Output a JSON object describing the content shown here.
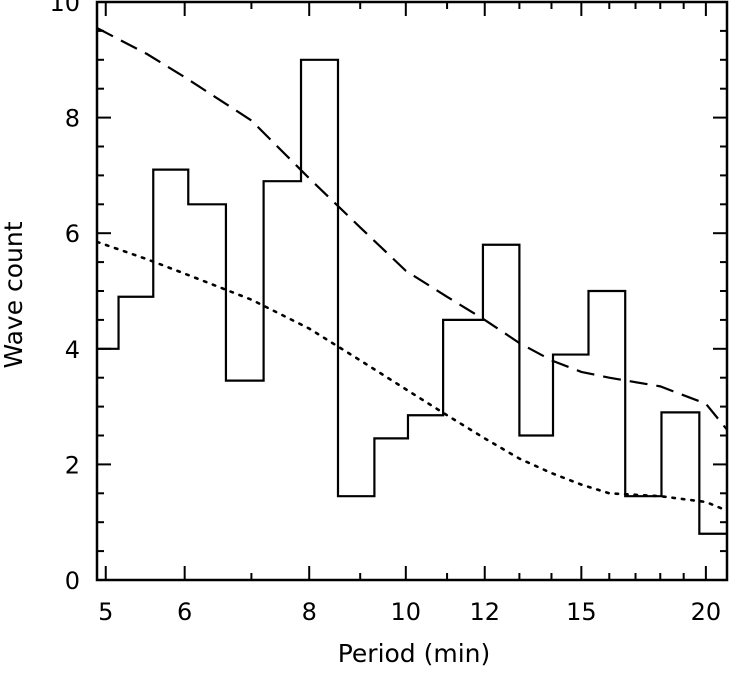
{
  "chart_data": {
    "type": "line",
    "title": "",
    "xlabel": "Period (min)",
    "ylabel": "Wave count",
    "x_scale": "log",
    "xlim": [
      4.9,
      21.0
    ],
    "ylim": [
      0,
      10
    ],
    "x_ticks": [
      5,
      6,
      8,
      10,
      12,
      15,
      20
    ],
    "x_tick_labels": [
      "5",
      "6",
      "8",
      "10",
      "12",
      "15",
      "20"
    ],
    "y_ticks": [
      0,
      2,
      4,
      6,
      8,
      10
    ],
    "y_tick_labels": [
      "0",
      "2",
      "4",
      "6",
      "8",
      "10"
    ],
    "grid": false,
    "legend": "none",
    "series": [
      {
        "style": "histogram-step",
        "color": "#000000",
        "bin_edges": [
          4.9,
          5.15,
          5.58,
          6.05,
          6.6,
          7.2,
          7.85,
          8.55,
          9.3,
          10.05,
          10.9,
          11.95,
          13.0,
          14.05,
          15.25,
          16.6,
          18.05,
          19.7,
          21.0
        ],
        "values": [
          4.0,
          4.9,
          7.1,
          6.5,
          3.45,
          6.9,
          9.0,
          1.45,
          2.45,
          2.85,
          4.5,
          5.8,
          2.5,
          3.9,
          5.0,
          1.45,
          2.9,
          0.8
        ]
      },
      {
        "style": "dashed",
        "color": "#000000",
        "x": [
          4.9,
          5.5,
          6.0,
          7.0,
          8.0,
          9.0,
          10.0,
          11.0,
          12.0,
          13.0,
          14.0,
          15.0,
          16.0,
          18.0,
          20.0,
          21.0
        ],
        "y": [
          9.55,
          9.1,
          8.7,
          7.95,
          6.95,
          6.1,
          5.35,
          4.9,
          4.5,
          4.1,
          3.8,
          3.6,
          3.5,
          3.35,
          3.05,
          2.6
        ]
      },
      {
        "style": "dotted",
        "color": "#000000",
        "x": [
          4.9,
          5.5,
          6.0,
          7.0,
          8.0,
          9.0,
          10.0,
          11.0,
          12.0,
          13.0,
          14.0,
          15.0,
          16.0,
          18.0,
          20.0,
          21.0
        ],
        "y": [
          5.85,
          5.55,
          5.3,
          4.85,
          4.35,
          3.8,
          3.3,
          2.85,
          2.45,
          2.1,
          1.85,
          1.65,
          1.5,
          1.45,
          1.35,
          1.2
        ]
      }
    ]
  }
}
